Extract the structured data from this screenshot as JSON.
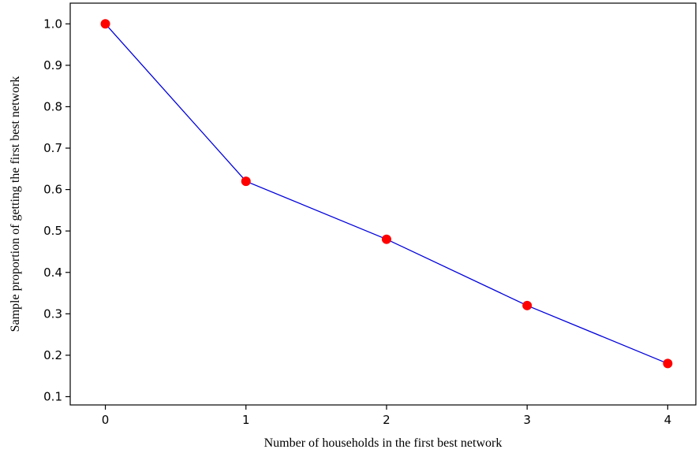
{
  "chart_data": {
    "type": "line",
    "title": "",
    "xlabel": "Number of households in the first best network",
    "ylabel": "Sample proportion of getting the first best network",
    "x": [
      0,
      1,
      2,
      3,
      4
    ],
    "series": [
      {
        "values": [
          1.0,
          0.62,
          0.48,
          0.32,
          0.18
        ]
      }
    ],
    "xlim": [
      -0.25,
      4.2
    ],
    "ylim": [
      0.08,
      1.05
    ],
    "xticks": [
      0,
      1,
      2,
      3,
      4
    ],
    "yticks": [
      0.1,
      0.2,
      0.3,
      0.4,
      0.5,
      0.6,
      0.7,
      0.8,
      0.9,
      1.0
    ],
    "xtick_labels": [
      "0",
      "1",
      "2",
      "3",
      "4"
    ],
    "ytick_labels": [
      "0.1",
      "0.2",
      "0.3",
      "0.4",
      "0.5",
      "0.6",
      "0.7",
      "0.8",
      "0.9",
      "1.0"
    ],
    "grid": false,
    "legend": "none",
    "colors": {
      "line": "#0000dd",
      "marker": "#ff0000",
      "axis": "#000000"
    }
  }
}
